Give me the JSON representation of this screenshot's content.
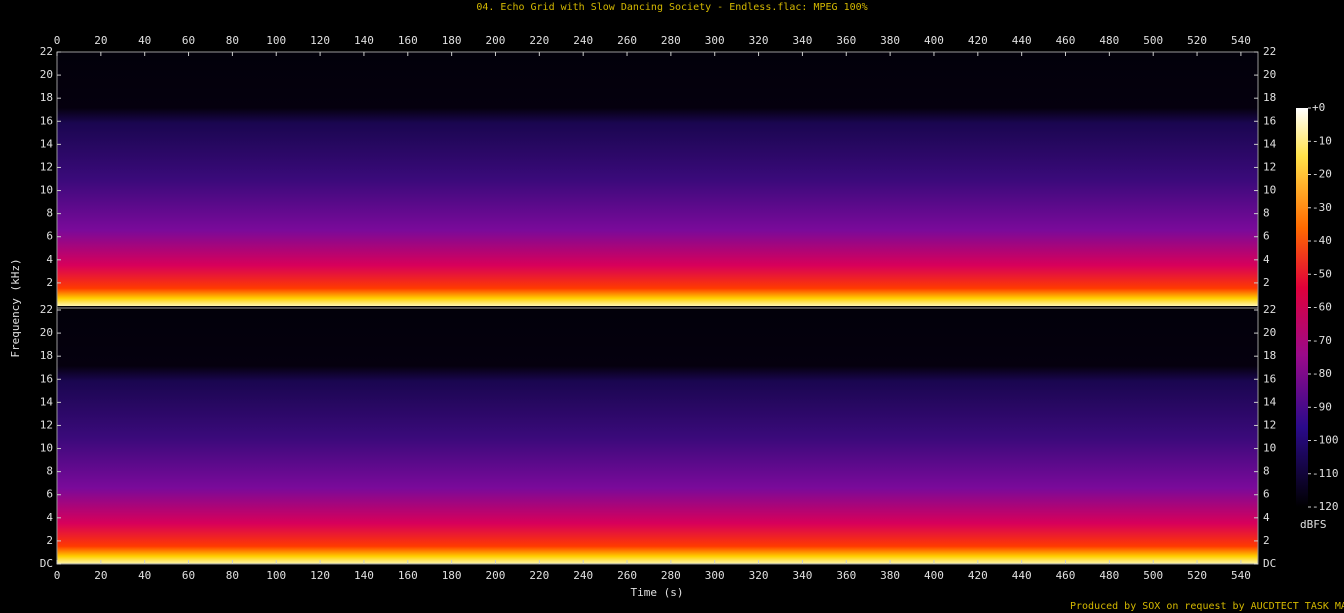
{
  "chart_data": {
    "type": "spectrogram",
    "title": "04. Echo Grid with Slow Dancing Society - Endless.flac: MPEG 100%",
    "x_label": "Time (s)",
    "y_label": "Frequency (kHz)",
    "xlim": [
      0,
      547.8
    ],
    "xticks": [
      0,
      20,
      40,
      60,
      80,
      100,
      120,
      140,
      160,
      180,
      200,
      220,
      240,
      260,
      280,
      300,
      320,
      340,
      360,
      380,
      400,
      420,
      440,
      460,
      480,
      500,
      520,
      540
    ],
    "ylim": [
      0,
      22
    ],
    "yticks": [
      {
        "value": 0,
        "label": "DC"
      },
      2,
      4,
      6,
      8,
      10,
      12,
      14,
      16,
      18,
      20,
      22
    ],
    "colorbar": {
      "label": "dBFS",
      "lim": [
        -120,
        0
      ],
      "ticks": [
        {
          "value": 0,
          "label": "+0"
        },
        -10,
        -20,
        -30,
        -40,
        -50,
        -60,
        -70,
        -80,
        -90,
        -100,
        -110,
        -120
      ]
    },
    "credit": "Produced by SOX on request by AUCDTECT TASK MANAGER"
  }
}
